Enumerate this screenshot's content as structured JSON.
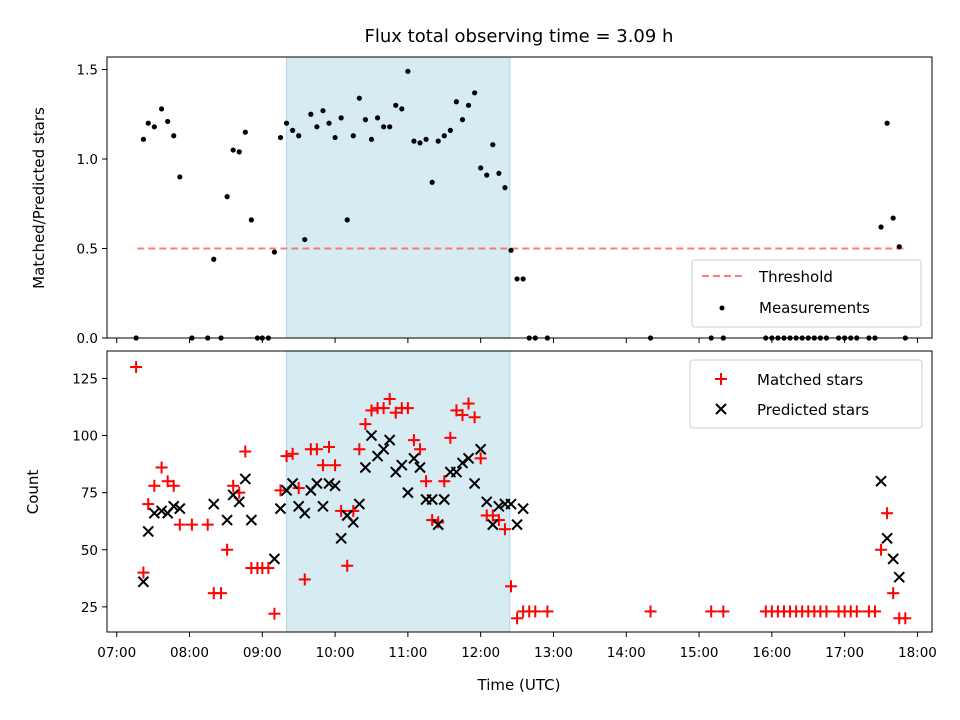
{
  "chart_data": [
    {
      "type": "scatter",
      "title": "Flux total observing time = 3.09 h",
      "xlabel": "",
      "ylabel": "Matched/Predicted stars",
      "xlim": [
        "07:00",
        "18:00"
      ],
      "ylim": [
        0,
        1.57
      ],
      "yticks": [
        "0.0",
        "0.5",
        "1.0",
        "1.5"
      ],
      "shaded_interval": [
        "09:20",
        "12:24"
      ],
      "shaded_color": "#add8e6",
      "threshold": {
        "name": "Threshold",
        "value": 0.5,
        "from": "07:17",
        "to": "17:50",
        "color": "#ff6666"
      },
      "legend": {
        "position": "lower right",
        "entries": [
          "Threshold",
          "Measurements"
        ]
      },
      "series": [
        {
          "name": "Measurements",
          "color": "#000000",
          "marker": "dot",
          "points": [
            [
              "07:16",
              0
            ],
            [
              "07:22",
              1.11
            ],
            [
              "07:26",
              1.2
            ],
            [
              "07:31",
              1.18
            ],
            [
              "07:37",
              1.28
            ],
            [
              "07:42",
              1.21
            ],
            [
              "07:47",
              1.13
            ],
            [
              "07:52",
              0.9
            ],
            [
              "08:02",
              0
            ],
            [
              "08:15",
              0
            ],
            [
              "08:20",
              0.44
            ],
            [
              "08:26",
              0
            ],
            [
              "08:31",
              0.79
            ],
            [
              "08:36",
              1.05
            ],
            [
              "08:41",
              1.04
            ],
            [
              "08:46",
              1.15
            ],
            [
              "08:51",
              0.66
            ],
            [
              "08:56",
              0
            ],
            [
              "09:00",
              0
            ],
            [
              "09:05",
              0
            ],
            [
              "09:10",
              0.48
            ],
            [
              "09:15",
              1.12
            ],
            [
              "09:20",
              1.2
            ],
            [
              "09:25",
              1.16
            ],
            [
              "09:30",
              1.13
            ],
            [
              "09:35",
              0.55
            ],
            [
              "09:40",
              1.25
            ],
            [
              "09:45",
              1.18
            ],
            [
              "09:50",
              1.27
            ],
            [
              "09:55",
              1.2
            ],
            [
              "10:00",
              1.12
            ],
            [
              "10:05",
              1.23
            ],
            [
              "10:10",
              0.66
            ],
            [
              "10:15",
              1.13
            ],
            [
              "10:20",
              1.34
            ],
            [
              "10:25",
              1.22
            ],
            [
              "10:30",
              1.11
            ],
            [
              "10:35",
              1.23
            ],
            [
              "10:40",
              1.18
            ],
            [
              "10:45",
              1.18
            ],
            [
              "10:50",
              1.3
            ],
            [
              "10:55",
              1.28
            ],
            [
              "11:00",
              1.49
            ],
            [
              "11:05",
              1.1
            ],
            [
              "11:10",
              1.09
            ],
            [
              "11:15",
              1.11
            ],
            [
              "11:20",
              0.87
            ],
            [
              "11:25",
              1.1
            ],
            [
              "11:30",
              1.13
            ],
            [
              "11:35",
              1.16
            ],
            [
              "11:40",
              1.32
            ],
            [
              "11:45",
              1.22
            ],
            [
              "11:50",
              1.3
            ],
            [
              "11:55",
              1.37
            ],
            [
              "12:00",
              0.95
            ],
            [
              "12:05",
              0.91
            ],
            [
              "12:10",
              1.08
            ],
            [
              "12:15",
              0.92
            ],
            [
              "12:20",
              0.84
            ],
            [
              "12:25",
              0.49
            ],
            [
              "12:30",
              0.33
            ],
            [
              "12:35",
              0.33
            ],
            [
              "12:40",
              0
            ],
            [
              "12:45",
              0
            ],
            [
              "12:55",
              0
            ],
            [
              "14:20",
              0
            ],
            [
              "15:10",
              0
            ],
            [
              "15:20",
              0
            ],
            [
              "15:55",
              0
            ],
            [
              "16:00",
              0
            ],
            [
              "16:05",
              0
            ],
            [
              "16:10",
              0
            ],
            [
              "16:15",
              0
            ],
            [
              "16:20",
              0
            ],
            [
              "16:25",
              0
            ],
            [
              "16:30",
              0
            ],
            [
              "16:35",
              0
            ],
            [
              "16:40",
              0
            ],
            [
              "16:45",
              0
            ],
            [
              "16:55",
              0
            ],
            [
              "17:00",
              0
            ],
            [
              "17:05",
              0
            ],
            [
              "17:10",
              0
            ],
            [
              "17:20",
              0
            ],
            [
              "17:25",
              0
            ],
            [
              "17:30",
              0.62
            ],
            [
              "17:35",
              1.2
            ],
            [
              "17:40",
              0.67
            ],
            [
              "17:45",
              0.51
            ],
            [
              "17:50",
              0
            ]
          ]
        }
      ]
    },
    {
      "type": "scatter",
      "xlabel": "Time (UTC)",
      "ylabel": "Count",
      "xlim": [
        "07:00",
        "18:00"
      ],
      "xticks": [
        "07:00",
        "08:00",
        "09:00",
        "10:00",
        "11:00",
        "12:00",
        "13:00",
        "14:00",
        "15:00",
        "16:00",
        "17:00",
        "18:00"
      ],
      "ylim": [
        14,
        137
      ],
      "yticks": [
        "25",
        "50",
        "75",
        "100",
        "125"
      ],
      "shaded_interval": [
        "09:20",
        "12:24"
      ],
      "shaded_color": "#add8e6",
      "legend": {
        "position": "upper right",
        "entries": [
          "Matched stars",
          "Predicted stars"
        ]
      },
      "series": [
        {
          "name": "Matched stars",
          "color": "#ff0000",
          "marker": "plus",
          "points": [
            [
              "07:16",
              130
            ],
            [
              "07:22",
              40
            ],
            [
              "07:26",
              70
            ],
            [
              "07:31",
              78
            ],
            [
              "07:37",
              86
            ],
            [
              "07:42",
              80
            ],
            [
              "07:47",
              78
            ],
            [
              "07:52",
              61
            ],
            [
              "08:02",
              61
            ],
            [
              "08:15",
              61
            ],
            [
              "08:20",
              31
            ],
            [
              "08:26",
              31
            ],
            [
              "08:31",
              50
            ],
            [
              "08:36",
              78
            ],
            [
              "08:41",
              75
            ],
            [
              "08:46",
              93
            ],
            [
              "08:51",
              42
            ],
            [
              "08:56",
              42
            ],
            [
              "09:00",
              42
            ],
            [
              "09:05",
              42
            ],
            [
              "09:10",
              22
            ],
            [
              "09:15",
              76
            ],
            [
              "09:20",
              91
            ],
            [
              "09:25",
              92
            ],
            [
              "09:30",
              77
            ],
            [
              "09:35",
              37
            ],
            [
              "09:40",
              94
            ],
            [
              "09:45",
              94
            ],
            [
              "09:50",
              87
            ],
            [
              "09:55",
              95
            ],
            [
              "10:00",
              87
            ],
            [
              "10:05",
              67
            ],
            [
              "10:10",
              43
            ],
            [
              "10:15",
              67
            ],
            [
              "10:20",
              94
            ],
            [
              "10:25",
              105
            ],
            [
              "10:30",
              111
            ],
            [
              "10:35",
              112
            ],
            [
              "10:40",
              112
            ],
            [
              "10:45",
              116
            ],
            [
              "10:50",
              110
            ],
            [
              "10:55",
              112
            ],
            [
              "11:00",
              112
            ],
            [
              "11:05",
              98
            ],
            [
              "11:10",
              94
            ],
            [
              "11:15",
              80
            ],
            [
              "11:20",
              63
            ],
            [
              "11:25",
              62
            ],
            [
              "11:30",
              80
            ],
            [
              "11:35",
              99
            ],
            [
              "11:40",
              111
            ],
            [
              "11:45",
              109
            ],
            [
              "11:50",
              114
            ],
            [
              "11:55",
              108
            ],
            [
              "12:00",
              90
            ],
            [
              "12:05",
              65
            ],
            [
              "12:10",
              65
            ],
            [
              "12:15",
              63
            ],
            [
              "12:20",
              59
            ],
            [
              "12:25",
              34
            ],
            [
              "12:30",
              20
            ],
            [
              "12:35",
              23
            ],
            [
              "12:40",
              23
            ],
            [
              "12:45",
              23
            ],
            [
              "12:55",
              23
            ],
            [
              "14:20",
              23
            ],
            [
              "15:10",
              23
            ],
            [
              "15:20",
              23
            ],
            [
              "15:55",
              23
            ],
            [
              "16:00",
              23
            ],
            [
              "16:05",
              23
            ],
            [
              "16:10",
              23
            ],
            [
              "16:15",
              23
            ],
            [
              "16:20",
              23
            ],
            [
              "16:25",
              23
            ],
            [
              "16:30",
              23
            ],
            [
              "16:35",
              23
            ],
            [
              "16:40",
              23
            ],
            [
              "16:45",
              23
            ],
            [
              "16:55",
              23
            ],
            [
              "17:00",
              23
            ],
            [
              "17:05",
              23
            ],
            [
              "17:10",
              23
            ],
            [
              "17:20",
              23
            ],
            [
              "17:25",
              23
            ],
            [
              "17:30",
              50
            ],
            [
              "17:35",
              66
            ],
            [
              "17:40",
              31
            ],
            [
              "17:45",
              20
            ],
            [
              "17:50",
              20
            ]
          ]
        },
        {
          "name": "Predicted stars",
          "color": "#000000",
          "marker": "x",
          "points": [
            [
              "07:22",
              36
            ],
            [
              "07:26",
              58
            ],
            [
              "07:31",
              66
            ],
            [
              "07:37",
              67
            ],
            [
              "07:42",
              66
            ],
            [
              "07:47",
              69
            ],
            [
              "07:52",
              68
            ],
            [
              "08:20",
              70
            ],
            [
              "08:31",
              63
            ],
            [
              "08:36",
              74
            ],
            [
              "08:41",
              71
            ],
            [
              "08:46",
              81
            ],
            [
              "08:51",
              63
            ],
            [
              "09:10",
              46
            ],
            [
              "09:15",
              68
            ],
            [
              "09:20",
              76
            ],
            [
              "09:25",
              79
            ],
            [
              "09:30",
              69
            ],
            [
              "09:35",
              66
            ],
            [
              "09:40",
              76
            ],
            [
              "09:45",
              79
            ],
            [
              "09:50",
              69
            ],
            [
              "09:55",
              79
            ],
            [
              "10:00",
              78
            ],
            [
              "10:05",
              55
            ],
            [
              "10:10",
              65
            ],
            [
              "10:15",
              62
            ],
            [
              "10:20",
              70
            ],
            [
              "10:25",
              86
            ],
            [
              "10:30",
              100
            ],
            [
              "10:35",
              91
            ],
            [
              "10:40",
              94
            ],
            [
              "10:45",
              98
            ],
            [
              "10:50",
              84
            ],
            [
              "10:55",
              87
            ],
            [
              "11:00",
              75
            ],
            [
              "11:05",
              90
            ],
            [
              "11:10",
              86
            ],
            [
              "11:15",
              72
            ],
            [
              "11:20",
              72
            ],
            [
              "11:25",
              61
            ],
            [
              "11:30",
              72
            ],
            [
              "11:35",
              84
            ],
            [
              "11:40",
              84
            ],
            [
              "11:45",
              88
            ],
            [
              "11:50",
              90
            ],
            [
              "11:55",
              79
            ],
            [
              "12:00",
              94
            ],
            [
              "12:05",
              71
            ],
            [
              "12:10",
              61
            ],
            [
              "12:15",
              69
            ],
            [
              "12:20",
              70
            ],
            [
              "12:25",
              70
            ],
            [
              "12:30",
              61
            ],
            [
              "12:35",
              68
            ],
            [
              "17:30",
              80
            ],
            [
              "17:35",
              55
            ],
            [
              "17:40",
              46
            ],
            [
              "17:45",
              38
            ]
          ]
        }
      ]
    }
  ]
}
